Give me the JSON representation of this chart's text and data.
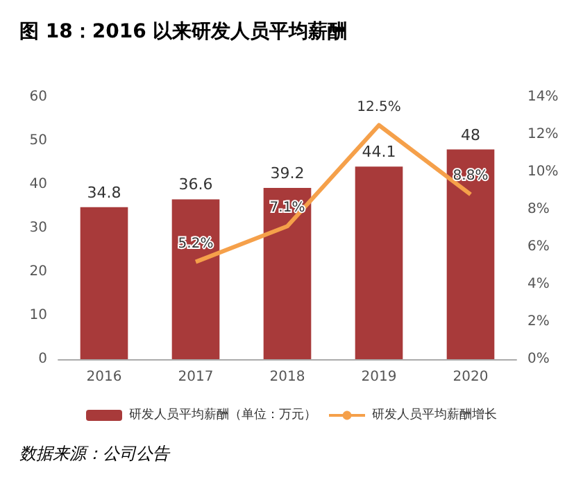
{
  "chart_data": {
    "type": "bar",
    "title": "图 18：2016 以来研发人员平均薪酬",
    "categories": [
      "2016",
      "2017",
      "2018",
      "2019",
      "2020"
    ],
    "series": [
      {
        "name": "研发人员平均薪酬（单位：万元）",
        "color": "#a83a3a",
        "values": [
          34.8,
          36.6,
          39.2,
          44.1,
          48
        ],
        "value_labels": [
          "34.8",
          "36.6",
          "39.2",
          "44.1",
          "48"
        ]
      },
      {
        "name": "研发人员平均薪酬增长",
        "type": "line",
        "axis": "y2",
        "color": "#f5a04a",
        "values": [
          null,
          5.2,
          7.1,
          12.5,
          8.8
        ],
        "value_labels": [
          null,
          "5.2%",
          "7.1%",
          "12.5%",
          "8.8%"
        ]
      }
    ],
    "ylim": [
      0,
      60
    ],
    "yticks": [
      0,
      10,
      20,
      30,
      40,
      50,
      60
    ],
    "y2lim": [
      0,
      14
    ],
    "y2ticks": [
      {
        "value": 0,
        "label": "0%"
      },
      {
        "value": 2,
        "label": "2%"
      },
      {
        "value": 4,
        "label": "4%"
      },
      {
        "value": 6,
        "label": "6%"
      },
      {
        "value": 8,
        "label": "8%"
      },
      {
        "value": 10,
        "label": "10%"
      },
      {
        "value": 12,
        "label": "12%"
      },
      {
        "value": 14,
        "label": "14%"
      }
    ],
    "grid": false,
    "legend": "bottom",
    "marker": "none",
    "annotations": [
      "数据来源：公司公告"
    ]
  }
}
